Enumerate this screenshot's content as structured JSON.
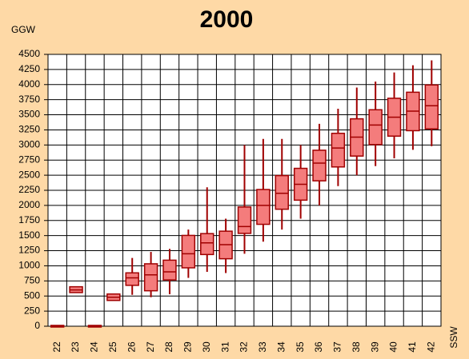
{
  "chart_data": {
    "type": "box",
    "title": "2000",
    "ylabel": "GGW",
    "xlabel": "SSW",
    "categories": [
      "22",
      "23",
      "24",
      "25",
      "26",
      "27",
      "28",
      "29",
      "30",
      "31",
      "32",
      "33",
      "34",
      "35",
      "36",
      "37",
      "38",
      "39",
      "40",
      "41",
      "42"
    ],
    "min": [
      0,
      570,
      0,
      440,
      520,
      480,
      530,
      800,
      900,
      880,
      1200,
      1400,
      1600,
      1780,
      2000,
      2320,
      2500,
      2650,
      2780,
      2920,
      2980
    ],
    "q1": [
      0,
      570,
      0,
      440,
      690,
      600,
      780,
      980,
      1200,
      1130,
      1550,
      1700,
      1950,
      2100,
      2420,
      2650,
      2830,
      3020,
      3160,
      3250,
      3280
    ],
    "median": [
      0,
      600,
      0,
      480,
      800,
      850,
      900,
      1200,
      1380,
      1350,
      1650,
      2000,
      2200,
      2350,
      2700,
      2950,
      3130,
      3330,
      3460,
      3560,
      3650
    ],
    "q3": [
      0,
      640,
      0,
      520,
      870,
      1020,
      1080,
      1490,
      1520,
      1560,
      1960,
      2250,
      2480,
      2600,
      2900,
      3180,
      3420,
      3570,
      3760,
      3860,
      3980
    ],
    "max": [
      0,
      640,
      0,
      520,
      1130,
      1230,
      1280,
      1600,
      2300,
      1780,
      3000,
      3100,
      3100,
      3000,
      3350,
      3600,
      3950,
      4050,
      4200,
      4320,
      4400
    ],
    "color": "#f47c7c",
    "edge_color": "#a00000",
    "ylim": [
      0,
      4500
    ],
    "yticks": [
      0,
      250,
      500,
      750,
      1000,
      1250,
      1500,
      1750,
      2000,
      2250,
      2500,
      2750,
      3000,
      3250,
      3500,
      3750,
      4000,
      4250,
      4500
    ],
    "grid": true
  }
}
